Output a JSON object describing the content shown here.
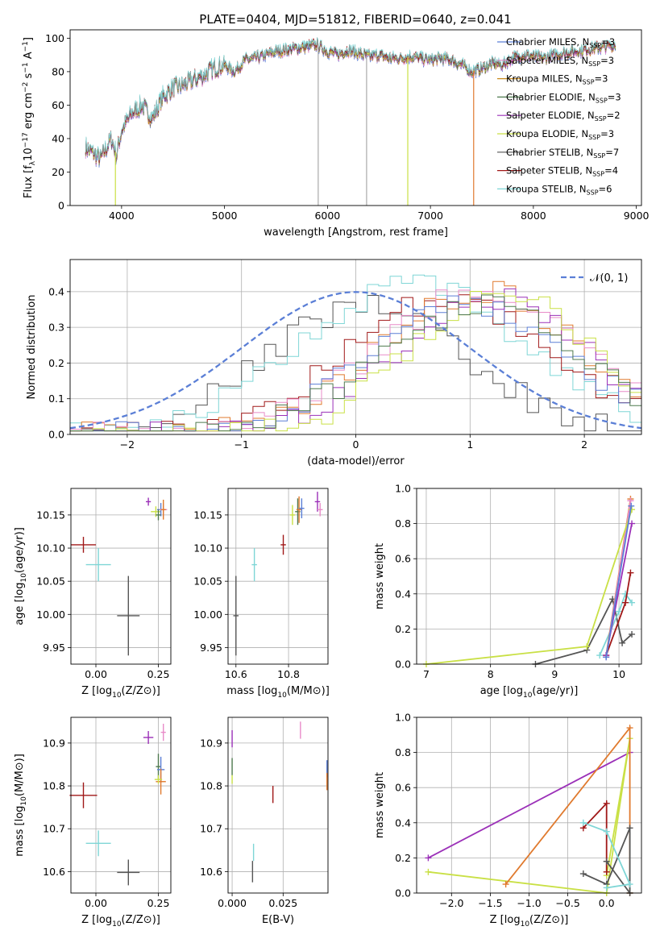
{
  "figure": {
    "title": "PLATE=0404, MJD=51812, FIBERID=0640, z=0.041"
  },
  "legend_colors": {
    "Chabrier MILES": "#5b7fd6",
    "Salpeter MILES": "#e88bc8",
    "Kroupa MILES": "#c88a1e",
    "Chabrier ELODIE": "#4f7a4f",
    "Salpeter ELODIE": "#9b30b8",
    "Kroupa ELODIE": "#c9e045",
    "Chabrier STELIB": "#555555",
    "Salpeter STELIB": "#a01818",
    "Kroupa STELIB": "#7fd6d6",
    "Kroupa MILES (bright)": "#e07a2e"
  },
  "chart_data": [
    {
      "id": "spectrum",
      "type": "line",
      "xlabel": "wavelength [Angstrom, rest frame]",
      "ylabel": "Flux [fλ10−17 erg cm−2 s−1 A−1]",
      "xlim": [
        3500,
        9050
      ],
      "ylim": [
        0,
        105
      ],
      "xticks": [
        4000,
        5000,
        6000,
        7000,
        8000,
        9000
      ],
      "yticks": [
        0,
        20,
        40,
        60,
        80,
        100
      ],
      "grid": false,
      "legend_position": "right",
      "series": [
        {
          "name": "Chabrier MILES, NSSP=3",
          "label_main": "Chabrier MILES, N",
          "label_sub": "SSP",
          "label_tail": "=3",
          "color": "#5b7fd6"
        },
        {
          "name": "Salpeter MILES, NSSP=3",
          "label_main": "Salpeter MILES, N",
          "label_sub": "SSP",
          "label_tail": "=3",
          "color": "#e88bc8"
        },
        {
          "name": "Kroupa MILES, NSSP=3",
          "label_main": "Kroupa MILES, N",
          "label_sub": "SSP",
          "label_tail": "=3",
          "color": "#c88a1e"
        },
        {
          "name": "Chabrier ELODIE, NSSP=3",
          "label_main": "Chabrier ELODIE, N",
          "label_sub": "SSP",
          "label_tail": "=3",
          "color": "#4f7a4f"
        },
        {
          "name": "Salpeter ELODIE, NSSP=2",
          "label_main": "Salpeter ELODIE, N",
          "label_sub": "SSP",
          "label_tail": "=2",
          "color": "#9b30b8"
        },
        {
          "name": "Kroupa ELODIE, NSSP=3",
          "label_main": "Kroupa ELODIE, N",
          "label_sub": "SSP",
          "label_tail": "=3",
          "color": "#c9e045"
        },
        {
          "name": "Chabrier STELIB, NSSP=7",
          "label_main": "Chabrier STELIB, N",
          "label_sub": "SSP",
          "label_tail": "=7",
          "color": "#555555"
        },
        {
          "name": "Salpeter STELIB, NSSP=4",
          "label_main": "Salpeter STELIB, N",
          "label_sub": "SSP",
          "label_tail": "=4",
          "color": "#a01818"
        },
        {
          "name": "Kroupa STELIB, NSSP=6",
          "label_main": "Kroupa STELIB, N",
          "label_sub": "SSP",
          "label_tail": "=6",
          "color": "#7fd6d6"
        }
      ],
      "continuum": {
        "x": [
          3650,
          3700,
          3800,
          3900,
          3950,
          4000,
          4100,
          4200,
          4300,
          4400,
          4500,
          4600,
          4700,
          4800,
          4900,
          5000,
          5100,
          5200,
          5300,
          5400,
          5500,
          5600,
          5700,
          5800,
          5900,
          6000,
          6100,
          6200,
          6300,
          6400,
          6500,
          6600,
          6700,
          6800,
          6900,
          7000,
          7100,
          7200,
          7300,
          7400,
          7500,
          7600,
          7700,
          7800,
          7900,
          8000,
          8100,
          8200,
          8300,
          8400,
          8500,
          8600,
          8700,
          8800
        ],
        "y": [
          35,
          32,
          28,
          40,
          30,
          45,
          55,
          60,
          52,
          65,
          70,
          72,
          75,
          78,
          82,
          84,
          80,
          87,
          88,
          90,
          92,
          93,
          94,
          95,
          96,
          92,
          90,
          93,
          91,
          89,
          90,
          88,
          88,
          89,
          88,
          87,
          88,
          87,
          84,
          80,
          82,
          85,
          84,
          88,
          90,
          89,
          88,
          90,
          91,
          92,
          93,
          94,
          95,
          96
        ]
      },
      "dropouts": [
        {
          "x": 3940,
          "color": "#c9e045"
        },
        {
          "x": 5910,
          "color": "#aaaaaa"
        },
        {
          "x": 6380,
          "color": "#aaaaaa"
        },
        {
          "x": 6780,
          "color": "#c9e045"
        },
        {
          "x": 7420,
          "color": "#e07a2e"
        }
      ]
    },
    {
      "id": "residuals",
      "type": "line",
      "xlabel": "(data-model)/error",
      "ylabel": "Normed distribution",
      "xlim": [
        -2.5,
        2.5
      ],
      "ylim": [
        0,
        0.49
      ],
      "xticks": [
        -2,
        -1,
        0,
        1,
        2
      ],
      "yticks": [
        0.0,
        0.1,
        0.2,
        0.3,
        0.4
      ],
      "grid": true,
      "legend": {
        "label": "𝒩(0, 1)",
        "position": "top-right"
      },
      "gaussian": {
        "name": "𝒩(0, 1)",
        "mean": 0,
        "sigma": 1,
        "color": "#5b7fd6"
      },
      "histograms": [
        {
          "color": "#555555",
          "peak_x": 0.1,
          "peak": 0.36,
          "width": 1.0
        },
        {
          "color": "#7fd6d6",
          "peak_x": 0.5,
          "peak": 0.42,
          "width": 1.1
        },
        {
          "color": "#a01818",
          "peak_x": 0.8,
          "peak": 0.38,
          "width": 1.0
        },
        {
          "color": "#e07a2e",
          "peak_x": 1.1,
          "peak": 0.4,
          "width": 1.0
        },
        {
          "color": "#e88bc8",
          "peak_x": 1.1,
          "peak": 0.4,
          "width": 1.0
        },
        {
          "color": "#5b7fd6",
          "peak_x": 1.0,
          "peak": 0.36,
          "width": 1.0
        },
        {
          "color": "#9b30b8",
          "peak_x": 1.2,
          "peak": 0.38,
          "width": 0.95
        },
        {
          "color": "#c9e045",
          "peak_x": 1.3,
          "peak": 0.4,
          "width": 0.9
        },
        {
          "color": "#4f7a4f",
          "peak_x": 1.1,
          "peak": 0.36,
          "width": 1.0
        }
      ]
    },
    {
      "id": "age-vs-Z",
      "type": "scatter",
      "xlabel": "Z [log10(Z/Z⊙)]",
      "ylabel": "age  [log10(age/yr)]",
      "xlim": [
        -0.1,
        0.3
      ],
      "ylim": [
        9.925,
        10.19
      ],
      "xticks": [
        0.0,
        0.25
      ],
      "yticks": [
        9.95,
        10.0,
        10.05,
        10.1,
        10.15
      ],
      "grid": true,
      "points": [
        {
          "x": -0.05,
          "y": 10.105,
          "xerr": 0.05,
          "yerr": 0.012,
          "color": "#a01818"
        },
        {
          "x": 0.01,
          "y": 10.075,
          "xerr": 0.05,
          "yerr": 0.025,
          "color": "#7fd6d6"
        },
        {
          "x": 0.13,
          "y": 9.998,
          "xerr": 0.045,
          "yerr": 0.06,
          "color": "#555555"
        },
        {
          "x": 0.21,
          "y": 10.17,
          "xerr": 0.01,
          "yerr": 0.006,
          "color": "#9b30b8"
        },
        {
          "x": 0.24,
          "y": 10.155,
          "xerr": 0.02,
          "yerr": 0.008,
          "color": "#c9e045"
        },
        {
          "x": 0.26,
          "y": 10.158,
          "xerr": 0.015,
          "yerr": 0.01,
          "color": "#5b7fd6"
        },
        {
          "x": 0.27,
          "y": 10.158,
          "xerr": 0.015,
          "yerr": 0.01,
          "color": "#e88bc8"
        },
        {
          "x": 0.27,
          "y": 10.158,
          "xerr": 0.01,
          "yerr": 0.015,
          "color": "#e07a2e"
        },
        {
          "x": 0.25,
          "y": 10.15,
          "xerr": 0.01,
          "yerr": 0.008,
          "color": "#4f7a4f"
        }
      ]
    },
    {
      "id": "age-vs-mass",
      "type": "scatter",
      "xlabel": "mass [log10(M/M⊙)]",
      "ylabel": "",
      "xlim": [
        10.57,
        10.95
      ],
      "ylim": [
        9.925,
        10.19
      ],
      "xticks": [
        10.6,
        10.8
      ],
      "yticks": [
        9.95,
        10.0,
        10.05,
        10.1,
        10.15
      ],
      "grid": true,
      "points": [
        {
          "x": 10.6,
          "y": 9.998,
          "xerr": 0.01,
          "yerr": 0.06,
          "color": "#555555"
        },
        {
          "x": 10.67,
          "y": 10.075,
          "xerr": 0.01,
          "yerr": 0.025,
          "color": "#7fd6d6"
        },
        {
          "x": 10.78,
          "y": 10.105,
          "xerr": 0.01,
          "yerr": 0.015,
          "color": "#a01818"
        },
        {
          "x": 10.815,
          "y": 10.15,
          "xerr": 0.01,
          "yerr": 0.015,
          "color": "#c9e045"
        },
        {
          "x": 10.835,
          "y": 10.155,
          "xerr": 0.01,
          "yerr": 0.02,
          "color": "#4f7a4f"
        },
        {
          "x": 10.84,
          "y": 10.158,
          "xerr": 0.01,
          "yerr": 0.02,
          "color": "#e07a2e"
        },
        {
          "x": 10.85,
          "y": 10.16,
          "xerr": 0.01,
          "yerr": 0.015,
          "color": "#5b7fd6"
        },
        {
          "x": 10.91,
          "y": 10.17,
          "xerr": 0.01,
          "yerr": 0.015,
          "color": "#9b30b8"
        },
        {
          "x": 10.92,
          "y": 10.158,
          "xerr": 0.01,
          "yerr": 0.01,
          "color": "#e88bc8"
        }
      ]
    },
    {
      "id": "mass-weight-vs-age",
      "type": "line",
      "xlabel": "age  [log10(age/yr)]",
      "ylabel": "mass weight",
      "xlim": [
        6.85,
        10.35
      ],
      "ylim": [
        0,
        1.0
      ],
      "xticks": [
        7,
        8,
        9,
        10
      ],
      "yticks": [
        0.0,
        0.2,
        0.4,
        0.6,
        0.8,
        1.0
      ],
      "grid": true,
      "series": [
        {
          "color": "#555555",
          "x": [
            8.7,
            9.5,
            9.9,
            10.05,
            10.2
          ],
          "y": [
            0.0,
            0.08,
            0.37,
            0.12,
            0.17
          ]
        },
        {
          "color": "#7fd6d6",
          "x": [
            9.7,
            10.0,
            10.1,
            10.2
          ],
          "y": [
            0.05,
            0.3,
            0.4,
            0.35
          ]
        },
        {
          "color": "#a01818",
          "x": [
            9.8,
            10.1,
            10.18
          ],
          "y": [
            0.05,
            0.35,
            0.52
          ]
        },
        {
          "color": "#e07a2e",
          "x": [
            9.8,
            10.18
          ],
          "y": [
            0.05,
            0.94
          ]
        },
        {
          "color": "#e88bc8",
          "x": [
            9.8,
            10.18
          ],
          "y": [
            0.04,
            0.93
          ]
        },
        {
          "color": "#9b30b8",
          "x": [
            9.8,
            10.2
          ],
          "y": [
            0.05,
            0.8
          ]
        },
        {
          "color": "#c9e045",
          "x": [
            7.0,
            9.5,
            10.2
          ],
          "y": [
            0.0,
            0.1,
            0.88
          ]
        },
        {
          "color": "#5b7fd6",
          "x": [
            9.8,
            10.19
          ],
          "y": [
            0.04,
            0.9
          ]
        }
      ]
    },
    {
      "id": "mass-vs-Z",
      "type": "scatter",
      "xlabel": "Z [log10(Z/Z⊙)]",
      "ylabel": "mass [log10(M/M⊙)]",
      "xlim": [
        -0.1,
        0.3
      ],
      "ylim": [
        10.55,
        10.96
      ],
      "xticks": [
        0.0,
        0.25
      ],
      "yticks": [
        10.6,
        10.7,
        10.8,
        10.9
      ],
      "grid": true,
      "points": [
        {
          "x": -0.05,
          "y": 10.778,
          "xerr": 0.055,
          "yerr": 0.03,
          "color": "#a01818"
        },
        {
          "x": 0.01,
          "y": 10.666,
          "xerr": 0.05,
          "yerr": 0.03,
          "color": "#7fd6d6"
        },
        {
          "x": 0.13,
          "y": 10.598,
          "xerr": 0.045,
          "yerr": 0.03,
          "color": "#555555"
        },
        {
          "x": 0.21,
          "y": 10.913,
          "xerr": 0.02,
          "yerr": 0.015,
          "color": "#9b30b8"
        },
        {
          "x": 0.25,
          "y": 10.845,
          "xerr": 0.01,
          "yerr": 0.03,
          "color": "#4f7a4f"
        },
        {
          "x": 0.26,
          "y": 10.838,
          "xerr": 0.015,
          "yerr": 0.03,
          "color": "#5b7fd6"
        },
        {
          "x": 0.27,
          "y": 10.925,
          "xerr": 0.01,
          "yerr": 0.02,
          "color": "#e88bc8"
        },
        {
          "x": 0.26,
          "y": 10.81,
          "xerr": 0.02,
          "yerr": 0.03,
          "color": "#e07a2e"
        },
        {
          "x": 0.25,
          "y": 10.815,
          "xerr": 0.015,
          "yerr": 0.01,
          "color": "#c9e045"
        }
      ]
    },
    {
      "id": "mass-vs-EBV",
      "type": "scatter",
      "xlabel": "E(B-V)",
      "ylabel": "",
      "xlim": [
        -0.002,
        0.047
      ],
      "ylim": [
        10.55,
        10.96
      ],
      "xticks": [
        0.0,
        0.025
      ],
      "yticks": [
        10.6,
        10.7,
        10.8,
        10.9
      ],
      "grid": true,
      "points": [
        {
          "x": 0.0,
          "y": 10.91,
          "xerr": 0.0,
          "yerr": 0.02,
          "color": "#9b30b8"
        },
        {
          "x": 0.0,
          "y": 10.845,
          "xerr": 0.0,
          "yerr": 0.02,
          "color": "#4f7a4f"
        },
        {
          "x": 0.0,
          "y": 10.815,
          "xerr": 0.0,
          "yerr": 0.01,
          "color": "#c9e045"
        },
        {
          "x": 0.01,
          "y": 10.6,
          "xerr": 0.0,
          "yerr": 0.025,
          "color": "#555555"
        },
        {
          "x": 0.0105,
          "y": 10.645,
          "xerr": 0.0,
          "yerr": 0.02,
          "color": "#7fd6d6"
        },
        {
          "x": 0.02,
          "y": 10.78,
          "xerr": 0.0,
          "yerr": 0.02,
          "color": "#a01818"
        },
        {
          "x": 0.0335,
          "y": 10.93,
          "xerr": 0.0,
          "yerr": 0.02,
          "color": "#e88bc8"
        },
        {
          "x": 0.0465,
          "y": 10.84,
          "xerr": 0.0,
          "yerr": 0.02,
          "color": "#5b7fd6"
        },
        {
          "x": 0.0465,
          "y": 10.81,
          "xerr": 0.0,
          "yerr": 0.02,
          "color": "#e07a2e"
        }
      ]
    },
    {
      "id": "mass-weight-vs-Z",
      "type": "line",
      "xlabel": "Z [log10(Z/Z⊙)]",
      "ylabel": "mass weight",
      "xlim": [
        -2.45,
        0.45
      ],
      "ylim": [
        0,
        1.0
      ],
      "xticks": [
        -2.0,
        -1.5,
        -1.0,
        -0.5,
        0.0
      ],
      "yticks": [
        0.0,
        0.2,
        0.4,
        0.6,
        0.8,
        1.0
      ],
      "grid": true,
      "series": [
        {
          "color": "#9b30b8",
          "x": [
            -2.3,
            0.3
          ],
          "y": [
            0.2,
            0.8
          ]
        },
        {
          "color": "#c9e045",
          "x": [
            -2.3,
            0.0,
            0.3,
            0.0
          ],
          "y": [
            0.12,
            0.0,
            0.88,
            0.1
          ]
        },
        {
          "color": "#e07a2e",
          "x": [
            -1.3,
            0.3,
            0.3
          ],
          "y": [
            0.05,
            0.94,
            0.0
          ]
        },
        {
          "color": "#a01818",
          "x": [
            -0.3,
            0.0,
            0.0
          ],
          "y": [
            0.37,
            0.51,
            0.12
          ]
        },
        {
          "color": "#555555",
          "x": [
            -0.3,
            0.0,
            0.3,
            0.3,
            0.0
          ],
          "y": [
            0.11,
            0.05,
            0.37,
            0.0,
            0.18
          ]
        },
        {
          "color": "#7fd6d6",
          "x": [
            -0.3,
            0.0,
            0.3,
            0.0
          ],
          "y": [
            0.4,
            0.35,
            0.05,
            0.03
          ]
        }
      ]
    }
  ]
}
